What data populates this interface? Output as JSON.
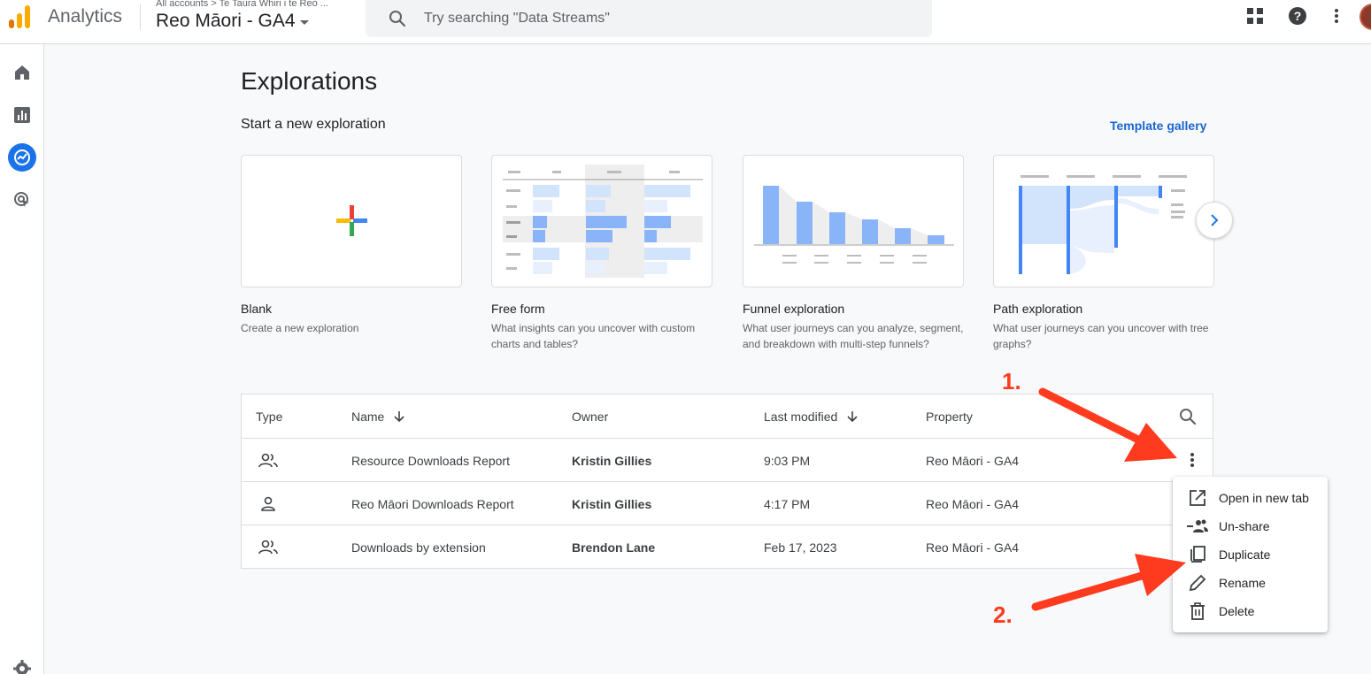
{
  "header": {
    "app_name": "Analytics",
    "breadcrumb": "All accounts > Te Taura Whiri i te Reo ...",
    "property_name": "Reo Māori - GA4",
    "search_placeholder": "Try searching \"Data Streams\""
  },
  "page": {
    "title": "Explorations",
    "section_title": "Start a new exploration",
    "template_link": "Template gallery"
  },
  "templates": [
    {
      "title": "Blank",
      "desc": "Create a new exploration"
    },
    {
      "title": "Free form",
      "desc": "What insights can you uncover with custom charts and tables?"
    },
    {
      "title": "Funnel exploration",
      "desc": "What user journeys can you analyze, segment, and breakdown with multi-step funnels?"
    },
    {
      "title": "Path exploration",
      "desc": "What user journeys can you uncover with tree graphs?"
    }
  ],
  "table": {
    "headers": {
      "type": "Type",
      "name": "Name",
      "owner": "Owner",
      "last_modified": "Last modified",
      "property": "Property"
    },
    "rows": [
      {
        "name": "Resource Downloads Report",
        "owner": "Kristin Gillies",
        "modified": "9:03 PM",
        "property": "Reo Māori - GA4",
        "type_icon": "shared-people-icon"
      },
      {
        "name": "Reo Māori Downloads Report",
        "owner": "Kristin Gillies",
        "modified": "4:17 PM",
        "property": "Reo Māori - GA4",
        "type_icon": "person-icon"
      },
      {
        "name": "Downloads by extension",
        "owner": "Brendon Lane",
        "modified": "Feb 17, 2023",
        "property": "Reo Māori - GA4",
        "type_icon": "shared-people-icon"
      }
    ]
  },
  "menu": {
    "items": [
      {
        "label": "Open in new tab",
        "icon": "open-in-new-icon"
      },
      {
        "label": "Un-share",
        "icon": "unshare-icon"
      },
      {
        "label": "Duplicate",
        "icon": "duplicate-icon"
      },
      {
        "label": "Rename",
        "icon": "pencil-icon"
      },
      {
        "label": "Delete",
        "icon": "trash-icon"
      }
    ]
  },
  "annotations": {
    "step1": "1.",
    "step2": "2."
  },
  "colors": {
    "accent": "#1a73e8",
    "annotation": "#ff3b1f",
    "chart_blue": "#8ab4f8",
    "chart_light": "#d2e3fc"
  }
}
